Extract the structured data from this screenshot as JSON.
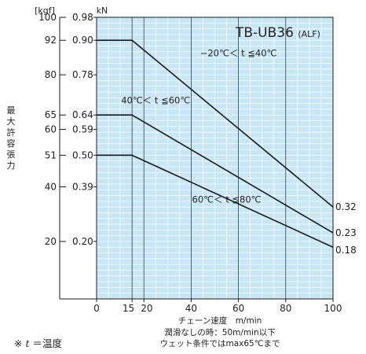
{
  "model_label": "TB-UB36",
  "model_suffix": "(ALF)",
  "unit_kgf": "[kgf]",
  "unit_kn": "kN",
  "ylabel": "最大許容張力",
  "footnote_prefix": "※ ",
  "footnote_t": "t",
  "footnote_rest": " ＝温度",
  "notes": [
    "潤滑なしの時：50m/min以下",
    "ウェット条件ではmax65℃まで"
  ],
  "chart_data": {
    "type": "line",
    "xlabel": "チェーン速度　m/min",
    "x_ticks": [
      0,
      15,
      20,
      40,
      60,
      80,
      100
    ],
    "x_tick_labels": [
      "0",
      "15",
      "20",
      "40",
      "60",
      "80",
      "100"
    ],
    "xlim": [
      0,
      100
    ],
    "kn_ticks": [
      0.98,
      0.9,
      0.78,
      0.64,
      0.59,
      0.5,
      0.39,
      0.2
    ],
    "kgf_ticks": [
      100,
      92,
      80,
      65,
      60,
      51,
      40,
      20
    ],
    "grid": true,
    "series": [
      {
        "name": "−20℃＜ t ≦40℃",
        "x": [
          0,
          15,
          100
        ],
        "y_kn": [
          0.9,
          0.9,
          0.32
        ],
        "end_label": "0.32"
      },
      {
        "name": "40℃＜ t ≦60℃",
        "x": [
          0,
          15,
          100
        ],
        "y_kn": [
          0.64,
          0.64,
          0.23
        ],
        "end_label": "0.23"
      },
      {
        "name": "60℃＜ t ≦80℃",
        "x": [
          0,
          15,
          100
        ],
        "y_kn": [
          0.5,
          0.5,
          0.18
        ],
        "end_label": "0.18"
      }
    ],
    "colors": {
      "plot_bg": "#c7e7f7",
      "grid": "#ffffff",
      "line": "#1a1a1a",
      "axis": "#1a1a1a"
    }
  }
}
